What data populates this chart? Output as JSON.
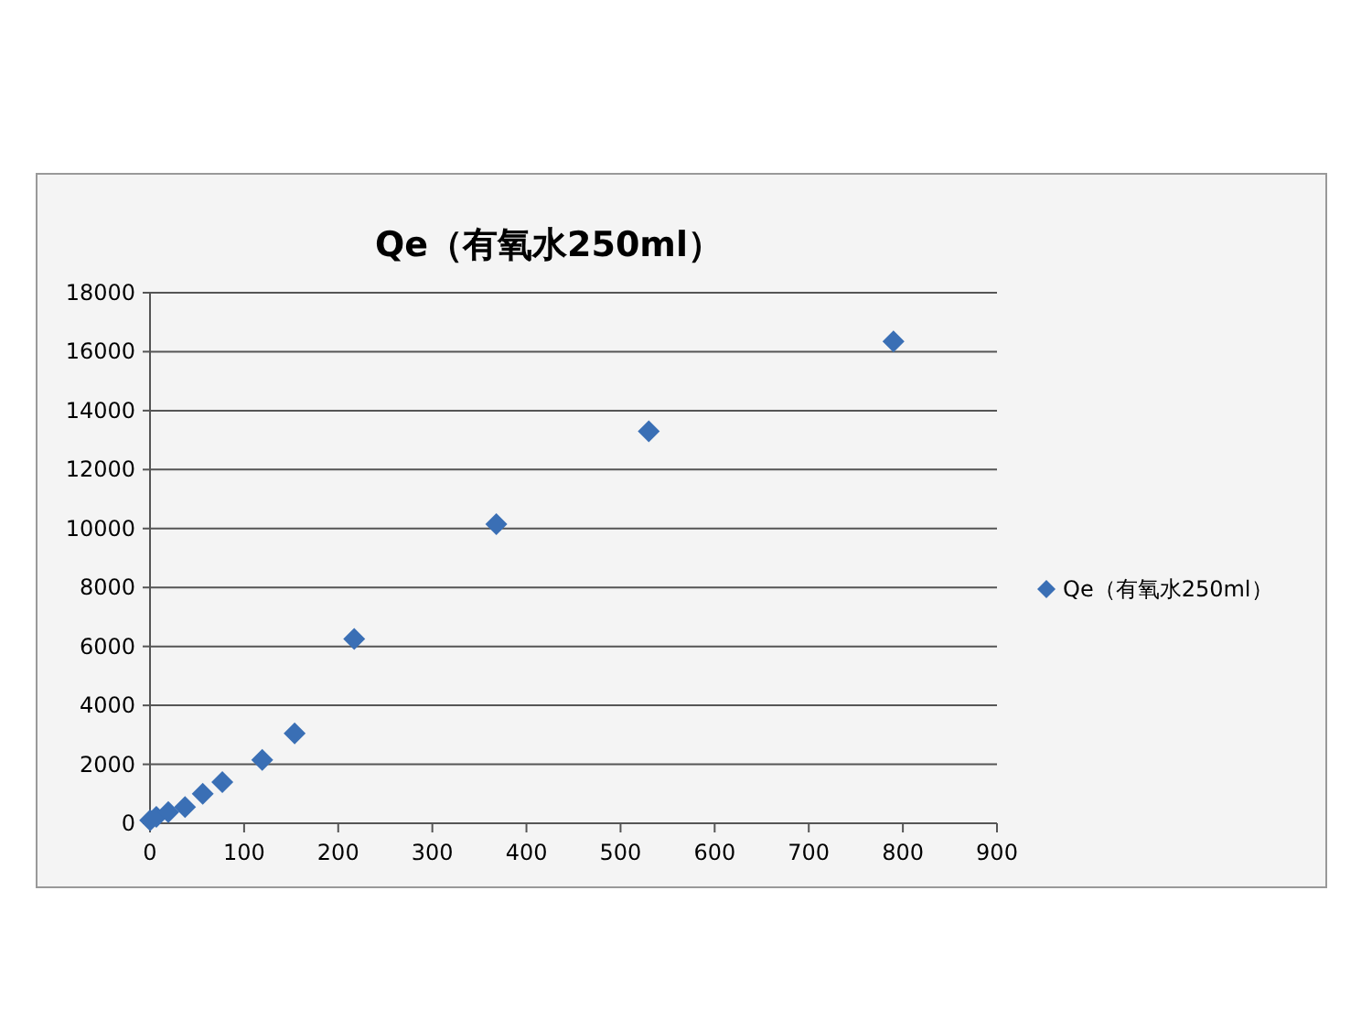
{
  "chart_data": {
    "type": "scatter",
    "title": "Qe（有氧水250ml）",
    "x": [
      0.16,
      6.76,
      19.45,
      37.21,
      56.04,
      76.83,
      119.25,
      153.67,
      217,
      368,
      530,
      790
    ],
    "series": [
      {
        "name": "Qe（有氧水250ml）",
        "color": "#3a6fb5",
        "values": [
          100,
          220,
          380,
          550,
          1000,
          1400,
          2150,
          3050,
          6250,
          10150,
          13300,
          16350
        ]
      }
    ],
    "xlim": [
      0,
      900
    ],
    "xticks": [
      0,
      100,
      200,
      300,
      400,
      500,
      600,
      700,
      800,
      900
    ],
    "ylim": [
      0,
      18000
    ],
    "yticks": [
      0,
      2000,
      4000,
      6000,
      8000,
      10000,
      12000,
      14000,
      16000,
      18000
    ],
    "grid": "y",
    "legend": "right",
    "marker": "diamond"
  }
}
